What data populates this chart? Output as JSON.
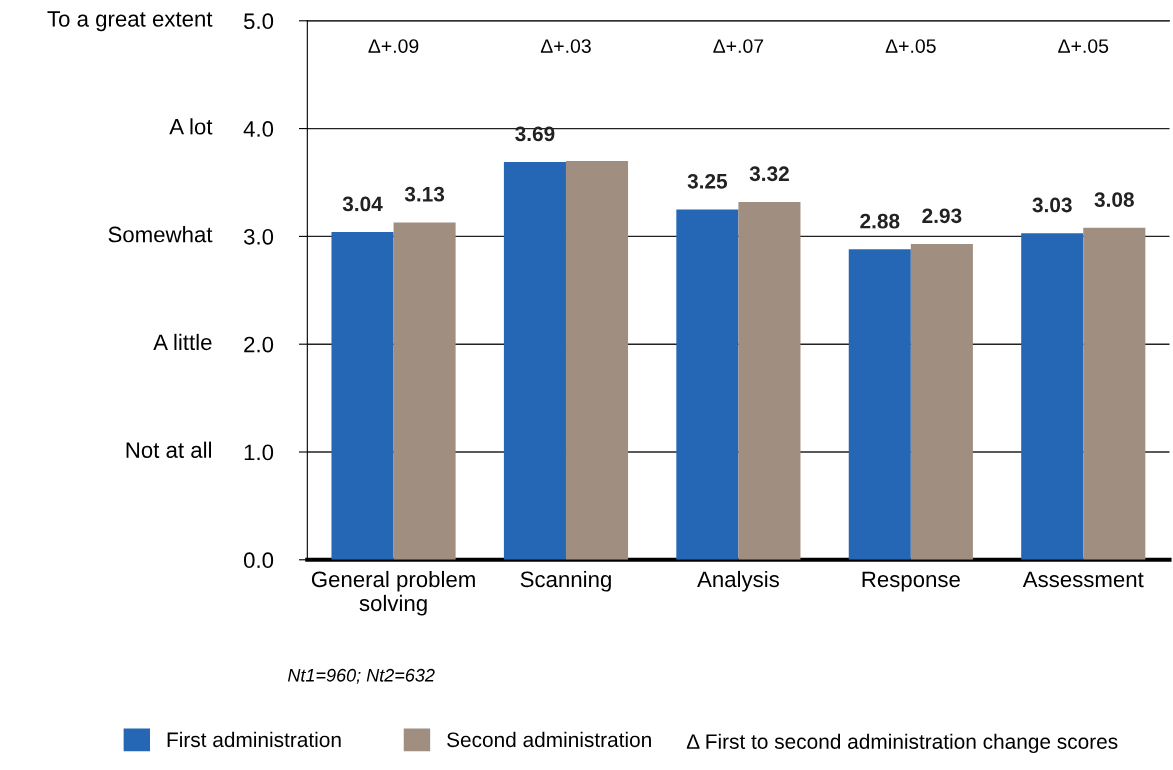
{
  "chart_data": {
    "type": "bar",
    "categories": [
      "General problem\nsolving",
      "Scanning",
      "Analysis",
      "Response",
      "Assessment"
    ],
    "series": [
      {
        "name": "First administration",
        "color": "#2567b5",
        "values": [
          3.04,
          3.69,
          3.25,
          2.88,
          3.03
        ],
        "value_labels": [
          "3.04",
          "3.69",
          "3.25",
          "2.88",
          "3.03"
        ]
      },
      {
        "name": "Second administration",
        "color": "#a08f80",
        "values": [
          3.13,
          3.7,
          3.32,
          2.93,
          3.08
        ],
        "value_labels": [
          "3.13",
          null,
          "3.32",
          "2.93",
          "3.08"
        ]
      }
    ],
    "ylim": [
      0,
      5
    ],
    "yticks": [
      {
        "value": 0,
        "label": "0.0"
      },
      {
        "value": 1,
        "label": "1.0"
      },
      {
        "value": 2,
        "label": "2.0"
      },
      {
        "value": 3,
        "label": "3.0"
      },
      {
        "value": 4,
        "label": "4.0"
      },
      {
        "value": 5,
        "label": "5.0"
      }
    ],
    "grid": "y",
    "legend": "bottom",
    "annotations": [
      "Not at all",
      "A little",
      "Somewhat",
      "A lot",
      "To a great extent",
      "Δ+.09",
      "Δ+.03",
      "Δ+.07",
      "Δ+.05",
      "Δ+.05",
      "Nt1=960; Nt2=632",
      "Δ First to second administration change scores"
    ]
  }
}
